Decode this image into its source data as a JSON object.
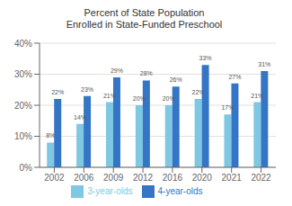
{
  "chart_data": {
    "type": "bar",
    "title": "Percent of State Population\nEnrolled in State-Funded Preschool",
    "categories": [
      "2002",
      "2006",
      "2009",
      "2012",
      "2016",
      "2020",
      "2021",
      "2022"
    ],
    "series": [
      {
        "name": "3-year-olds",
        "color": "#7EC8E3",
        "values": [
          8,
          14,
          21,
          20,
          20,
          22,
          17,
          21
        ],
        "value_labels": [
          "8%",
          "14%",
          "21%",
          "20%",
          "20%",
          "22%",
          "17%",
          "21%"
        ]
      },
      {
        "name": "4-year-olds",
        "color": "#3575C5",
        "values": [
          22,
          23,
          29,
          28,
          26,
          33,
          27,
          31
        ],
        "value_labels": [
          "22%",
          "23%",
          "29%",
          "28%",
          "26%",
          "33%",
          "27%",
          "31%"
        ]
      }
    ],
    "ylim": [
      0,
      40
    ],
    "yticks": [
      {
        "value": 0,
        "label": "0%"
      },
      {
        "value": 10,
        "label": "10%"
      },
      {
        "value": 20,
        "label": "20%"
      },
      {
        "value": 30,
        "label": "30%"
      },
      {
        "value": 40,
        "label": "40%"
      }
    ],
    "grid": true,
    "legend": "bottom",
    "data_labels": true
  }
}
